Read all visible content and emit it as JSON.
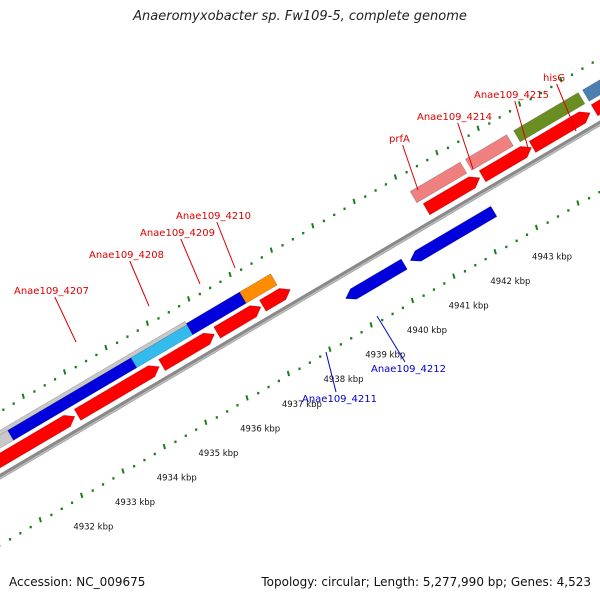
{
  "title": "Anaeromyxobacter sp. Fw109-5, complete genome",
  "footer": {
    "accession": "Accession: NC_009675",
    "summary": "Topology: circular; Length: 5,277,990 bp; Genes: 4,523"
  },
  "colors": {
    "cds": "#ff0000",
    "cds_light": "#f08080",
    "blue": "#0000dd",
    "cyan": "#33bbee",
    "orange": "#ff8c00",
    "olive": "#6b8e23",
    "steelblue": "#4a7fb0",
    "silver": "#c8c8c8",
    "backbone": "#8a8a8a",
    "tick": "#1a7f1a",
    "label_red": "#dd0000",
    "label_blue": "#0000cc"
  },
  "scale_labels": [
    "4932 kbp",
    "4933 kbp",
    "4934 kbp",
    "4935 kbp",
    "4936 kbp",
    "4937 kbp",
    "4938 kbp",
    "4939 kbp",
    "4940 kbp",
    "4941 kbp",
    "4942 kbp",
    "4943 kbp"
  ],
  "gene_labels_top": [
    "Anae109_4207",
    "Anae109_4208",
    "Anae109_4209",
    "Anae109_4210",
    "prfA",
    "Anae109_4214",
    "Anae109_4215",
    "hisG"
  ],
  "gene_labels_bottom": [
    "Anae109_4211",
    "Anae109_4212"
  ]
}
